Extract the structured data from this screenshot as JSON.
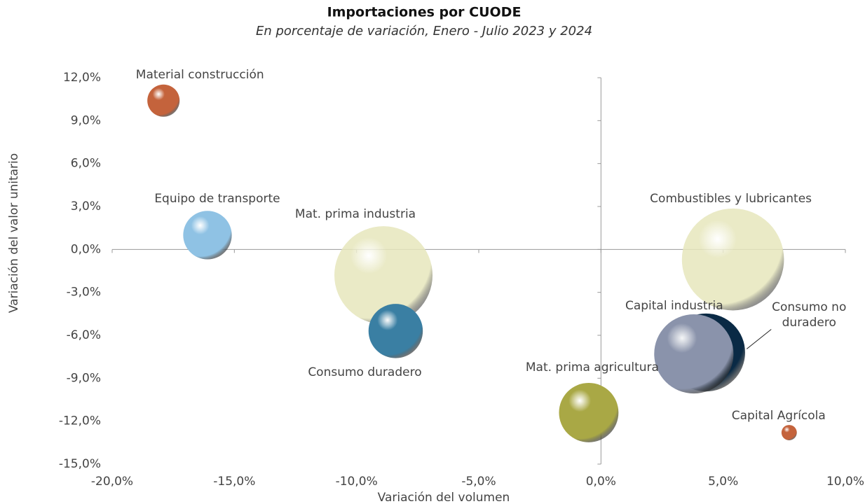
{
  "chart_data": {
    "type": "bubble",
    "title": "Importaciones por CUODE",
    "subtitle": "En porcentaje de variación, Enero - Julio 2023 y 2024",
    "x_label": "Variación del volumen",
    "y_label": "Variación del valor unitario",
    "categories": [
      "Material construcción",
      "Equipo de transporte",
      "Mat. prima industria",
      "Consumo duradero",
      "Mat. prima agricultura",
      "Consumo no duradero",
      "Capital industria",
      "Combustibles y lubricantes",
      "Capital Agrícola"
    ],
    "x": [
      -17.9,
      -16.1,
      -8.9,
      -8.4,
      -0.5,
      4.3,
      3.8,
      5.4,
      7.7
    ],
    "values": [
      10.4,
      1.0,
      -1.8,
      -5.7,
      -11.4,
      -7.2,
      -7.3,
      -0.7,
      -12.8
    ],
    "sizes": [
      5.3,
      12,
      49,
      15,
      18,
      31,
      32,
      53,
      1.2
    ],
    "colors": [
      "#c4633c",
      "#8fc2e4",
      "#e6e6bc",
      "#3a7fa3",
      "#a9a845",
      "#0a2a45",
      "#8a93ab",
      "#e6e6bc",
      "#c4633c"
    ],
    "xlim": [
      -20,
      10
    ],
    "xticks": [
      {
        "value": -20,
        "label": "-20,0%"
      },
      {
        "value": -15,
        "label": "-15,0%"
      },
      {
        "value": -10,
        "label": "-10,0%"
      },
      {
        "value": -5,
        "label": "-5,0%"
      },
      {
        "value": 0,
        "label": "0,0%"
      },
      {
        "value": 5,
        "label": "5,0%"
      },
      {
        "value": 10,
        "label": "10,0%"
      }
    ],
    "ylim": [
      -15,
      12
    ],
    "yticks": [
      {
        "value": -15,
        "label": "-15,0%"
      },
      {
        "value": -12,
        "label": "-12,0%"
      },
      {
        "value": -9,
        "label": "-9,0%"
      },
      {
        "value": -6,
        "label": "-6,0%"
      },
      {
        "value": -3,
        "label": "-3,0%"
      },
      {
        "value": 0,
        "label": "0,0%"
      },
      {
        "value": 3,
        "label": "3,0%"
      },
      {
        "value": 6,
        "label": "6,0%"
      },
      {
        "value": 9,
        "label": "9,0%"
      },
      {
        "value": 12,
        "label": "12,0%"
      }
    ],
    "grid": false
  }
}
